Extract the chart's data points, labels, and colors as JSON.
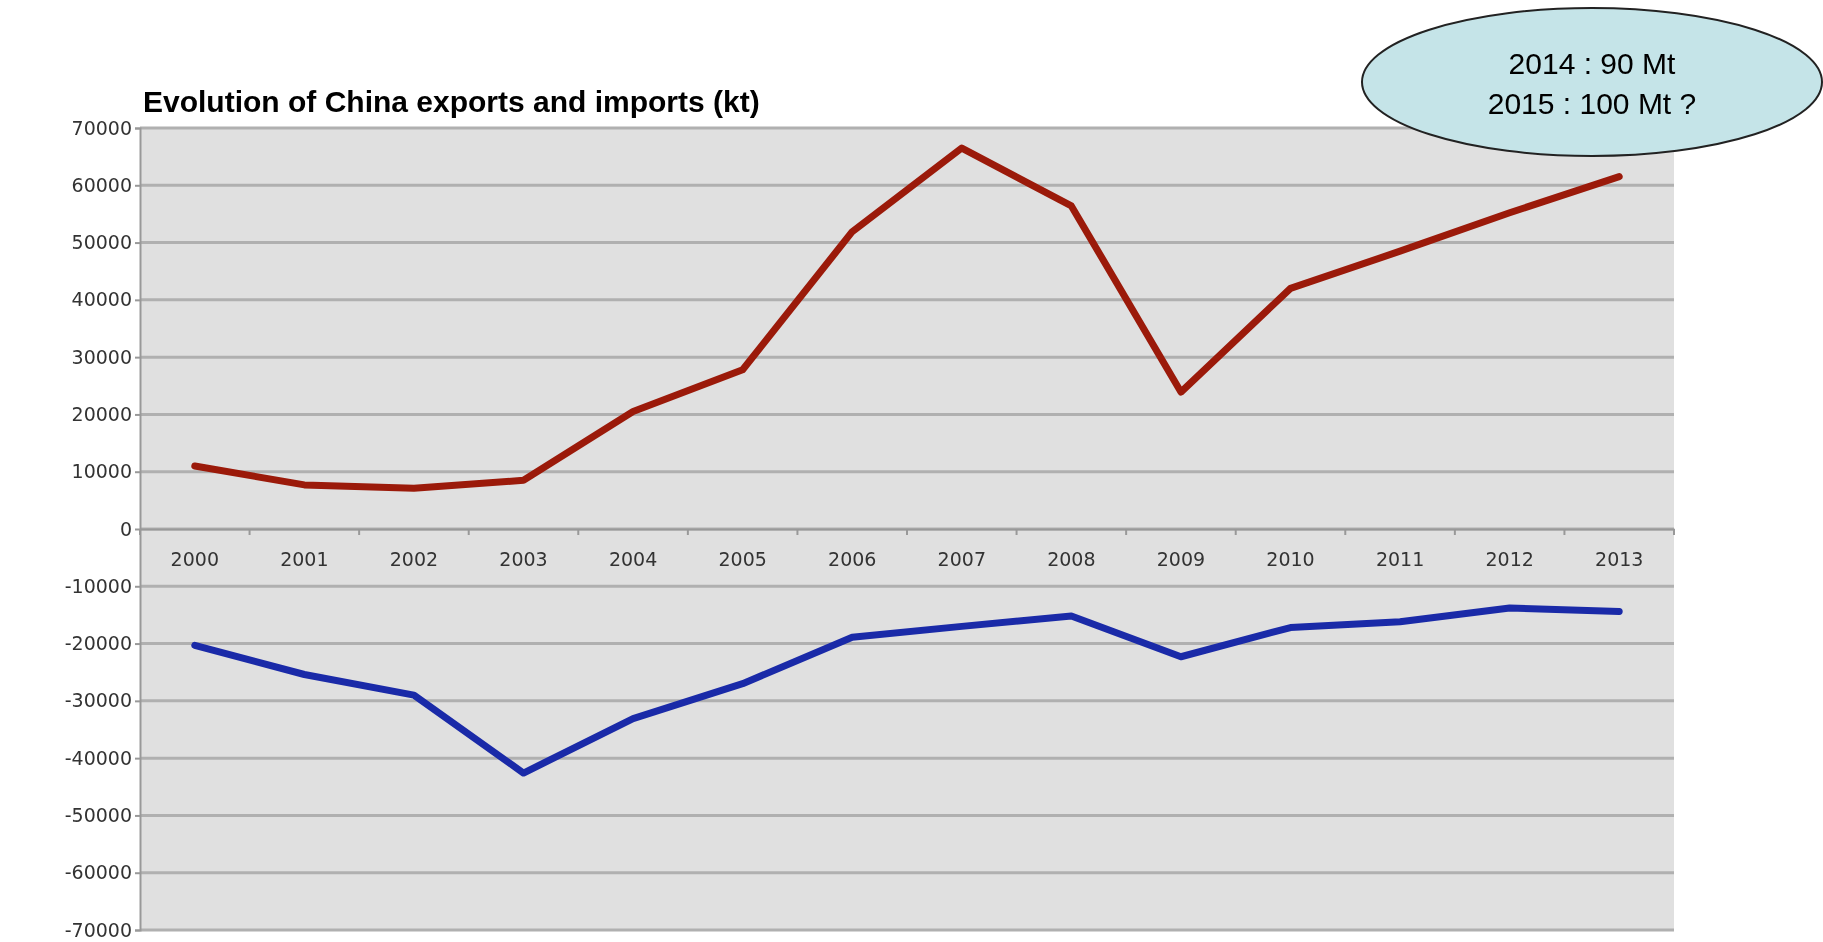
{
  "chart_data": {
    "type": "line",
    "title": "Evolution of China exports and imports (kt)",
    "categories": [
      "2000",
      "2001",
      "2002",
      "2003",
      "2004",
      "2005",
      "2006",
      "2007",
      "2008",
      "2009",
      "2010",
      "2011",
      "2012",
      "2013"
    ],
    "series": [
      {
        "color": "#9b1a0a",
        "values": [
          11000,
          7700,
          7100,
          8500,
          20500,
          27800,
          51900,
          66500,
          56400,
          23900,
          42000,
          48500,
          55200,
          61500
        ]
      },
      {
        "color": "#1a2aa8",
        "values": [
          -20300,
          -25400,
          -29000,
          -42600,
          -33100,
          -27000,
          -18900,
          -17000,
          -15200,
          -22300,
          -17200,
          -16200,
          -13800,
          -14400
        ]
      }
    ],
    "ylim": [
      -70000,
      70000
    ],
    "yticks": [
      -70000,
      -60000,
      -50000,
      -40000,
      -30000,
      -20000,
      -10000,
      0,
      10000,
      20000,
      30000,
      40000,
      50000,
      60000,
      70000
    ],
    "grid": "y",
    "marker": "none",
    "line_style": "solid",
    "annotations": [
      "2014 : 90 Mt",
      "2015 : 100 Mt ?"
    ]
  }
}
